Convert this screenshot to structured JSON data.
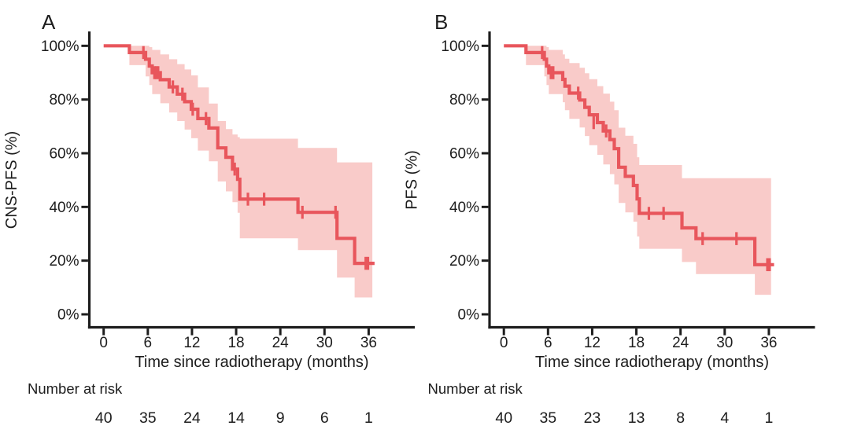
{
  "figure": {
    "description": "Kaplan-Meier survival curves with 95% confidence bands",
    "panels": [
      "A",
      "B"
    ]
  },
  "colors": {
    "curve": "#E8565C",
    "band": "#F9CBC9",
    "axis": "#1d1d1d",
    "text": "#1d1d1d",
    "background": "#ffffff"
  },
  "chart_data": [
    {
      "type": "line",
      "subtype": "kaplan-meier-step",
      "label": "A",
      "ylabel": "CNS-PFS (%)",
      "xlabel": "Time since radiotherapy (months)",
      "x_ticks": [
        0,
        6,
        12,
        18,
        24,
        30,
        36
      ],
      "y_ticks": [
        {
          "v": 0,
          "label": "0%"
        },
        {
          "v": 20,
          "label": "20%"
        },
        {
          "v": 40,
          "label": "40%"
        },
        {
          "v": 60,
          "label": "60%"
        },
        {
          "v": 80,
          "label": "80%"
        },
        {
          "v": 100,
          "label": "100%"
        }
      ],
      "xlim": [
        0,
        38
      ],
      "ylim": [
        0,
        100
      ],
      "grid": false,
      "legend": "none",
      "curve_start": {
        "t": 0,
        "s": 100
      },
      "events": [
        [
          3.5,
          97.5
        ],
        [
          5.7,
          95.0
        ],
        [
          6.2,
          92.5
        ],
        [
          6.6,
          90.0
        ],
        [
          7.7,
          87.4
        ],
        [
          8.9,
          84.7
        ],
        [
          10.0,
          82.0
        ],
        [
          11.0,
          79.2
        ],
        [
          11.9,
          76.4
        ],
        [
          12.8,
          72.9
        ],
        [
          14.3,
          69.4
        ],
        [
          15.5,
          62.0
        ],
        [
          16.6,
          58.5
        ],
        [
          17.5,
          54.1
        ],
        [
          18.2,
          50.3
        ],
        [
          18.5,
          42.9
        ],
        [
          26.4,
          38.0
        ],
        [
          31.7,
          28.3
        ],
        [
          34.1,
          19.0
        ]
      ],
      "censors": [
        [
          5.4,
          97.5
        ],
        [
          6.9,
          90.0
        ],
        [
          7.15,
          90.0
        ],
        [
          7.4,
          90.0
        ],
        [
          9.4,
          84.7
        ],
        [
          10.7,
          82.0
        ],
        [
          12.1,
          76.4
        ],
        [
          13.9,
          72.9
        ],
        [
          17.8,
          54.1
        ],
        [
          19.6,
          42.9
        ],
        [
          21.8,
          42.9
        ],
        [
          27.0,
          38.0
        ],
        [
          31.5,
          38.0
        ],
        [
          35.6,
          19.0
        ],
        [
          35.9,
          19.0
        ]
      ],
      "end_t": 36.8,
      "band": [
        [
          3.5,
          100,
          92.8
        ],
        [
          5.7,
          100,
          88.6
        ],
        [
          6.2,
          99.5,
          85.4
        ],
        [
          6.6,
          98.5,
          82.0
        ],
        [
          7.7,
          96.8,
          78.6
        ],
        [
          8.9,
          95.0,
          75.2
        ],
        [
          10.0,
          93.2,
          72.0
        ],
        [
          11.0,
          91.2,
          68.8
        ],
        [
          11.9,
          89.0,
          65.6
        ],
        [
          12.8,
          84.5,
          61.0
        ],
        [
          14.3,
          78.5,
          57.0
        ],
        [
          15.5,
          72.0,
          49.5
        ],
        [
          16.6,
          69.0,
          45.8
        ],
        [
          17.5,
          67.0,
          41.8
        ],
        [
          18.2,
          66.0,
          37.8
        ],
        [
          18.5,
          65.4,
          28.3
        ],
        [
          26.4,
          62.0,
          23.9
        ],
        [
          31.7,
          56.6,
          13.7
        ],
        [
          34.1,
          56.6,
          6.3
        ]
      ],
      "band_end_t": 36.5,
      "risk_table": {
        "title": "Number at risk",
        "times": [
          0,
          6,
          12,
          18,
          24,
          30,
          36
        ],
        "counts": [
          40,
          35,
          24,
          14,
          9,
          6,
          1
        ]
      }
    },
    {
      "type": "line",
      "subtype": "kaplan-meier-step",
      "label": "B",
      "ylabel": "PFS (%)",
      "xlabel": "Time since radiotherapy (months)",
      "x_ticks": [
        0,
        6,
        12,
        18,
        24,
        30,
        36
      ],
      "y_ticks": [
        {
          "v": 0,
          "label": "0%"
        },
        {
          "v": 20,
          "label": "20%"
        },
        {
          "v": 40,
          "label": "40%"
        },
        {
          "v": 60,
          "label": "60%"
        },
        {
          "v": 80,
          "label": "80%"
        },
        {
          "v": 100,
          "label": "100%"
        }
      ],
      "xlim": [
        0,
        38
      ],
      "ylim": [
        0,
        100
      ],
      "grid": false,
      "legend": "none",
      "curve_start": {
        "t": 0,
        "s": 100
      },
      "events": [
        [
          3.0,
          97.5
        ],
        [
          5.5,
          95.0
        ],
        [
          5.8,
          92.5
        ],
        [
          6.1,
          90.0
        ],
        [
          8.0,
          87.5
        ],
        [
          8.3,
          85.0
        ],
        [
          8.9,
          82.4
        ],
        [
          10.3,
          79.8
        ],
        [
          11.0,
          77.1
        ],
        [
          11.6,
          74.3
        ],
        [
          12.7,
          71.4
        ],
        [
          13.5,
          68.3
        ],
        [
          14.4,
          65.1
        ],
        [
          15.0,
          61.7
        ],
        [
          15.6,
          54.8
        ],
        [
          16.5,
          51.4
        ],
        [
          17.6,
          48.0
        ],
        [
          18.1,
          43.0
        ],
        [
          18.4,
          37.6
        ],
        [
          24.2,
          32.2
        ],
        [
          26.1,
          28.2
        ],
        [
          34.1,
          18.5
        ]
      ],
      "censors": [
        [
          5.2,
          97.5
        ],
        [
          6.4,
          90.0
        ],
        [
          6.7,
          90.0
        ],
        [
          10.1,
          82.4
        ],
        [
          12.2,
          71.4
        ],
        [
          13.9,
          68.3
        ],
        [
          19.7,
          37.6
        ],
        [
          21.7,
          37.6
        ],
        [
          27.0,
          28.2
        ],
        [
          31.6,
          28.2
        ],
        [
          35.8,
          18.5
        ],
        [
          36.1,
          18.5
        ]
      ],
      "end_t": 36.7,
      "band": [
        [
          3.0,
          100,
          92.8
        ],
        [
          5.5,
          100,
          88.6
        ],
        [
          5.8,
          99.5,
          85.4
        ],
        [
          6.1,
          98.5,
          82.0
        ],
        [
          8.0,
          96.8,
          79.0
        ],
        [
          8.3,
          95.2,
          76.0
        ],
        [
          8.9,
          93.6,
          72.8
        ],
        [
          10.3,
          91.8,
          69.6
        ],
        [
          11.0,
          89.8,
          66.4
        ],
        [
          11.6,
          87.6,
          63.0
        ],
        [
          12.7,
          85.0,
          59.4
        ],
        [
          13.5,
          82.2,
          55.8
        ],
        [
          14.4,
          79.2,
          52.2
        ],
        [
          15.0,
          76.0,
          48.4
        ],
        [
          15.6,
          69.5,
          41.5
        ],
        [
          16.5,
          66.5,
          38.0
        ],
        [
          17.6,
          63.5,
          34.5
        ],
        [
          18.1,
          58.5,
          29.0
        ],
        [
          18.4,
          55.6,
          24.4
        ],
        [
          24.2,
          50.7,
          19.5
        ],
        [
          26.1,
          50.7,
          15.0
        ],
        [
          34.1,
          50.7,
          7.3
        ]
      ],
      "band_end_t": 36.3,
      "risk_table": {
        "title": "Number at risk",
        "times": [
          0,
          6,
          12,
          18,
          24,
          30,
          36
        ],
        "counts": [
          40,
          35,
          23,
          13,
          8,
          4,
          1
        ]
      }
    }
  ]
}
